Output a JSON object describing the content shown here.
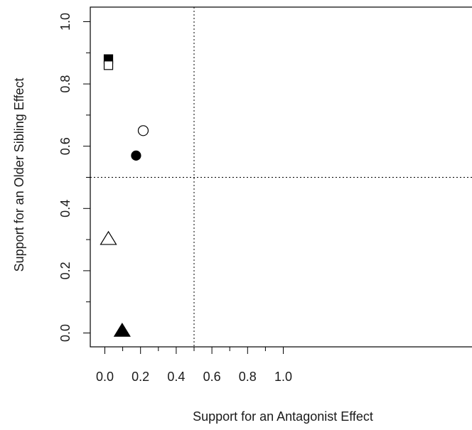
{
  "chart_data": {
    "type": "scatter",
    "title": "",
    "xlabel": "Support for an Antagonist Effect",
    "ylabel": "Support for an Older Sibling Effect",
    "xlim": [
      -0.04,
      1.04
    ],
    "ylim": [
      -0.04,
      1.04
    ],
    "x_ticks": [
      0.0,
      0.2,
      0.4,
      0.6,
      0.8,
      1.0
    ],
    "x_tick_labels": [
      "0.0",
      "0.2",
      "0.4",
      "0.6",
      "0.8",
      "1.0"
    ],
    "y_ticks": [
      0.0,
      0.2,
      0.4,
      0.6,
      0.8,
      1.0
    ],
    "y_tick_labels": [
      "0.0",
      "0.2",
      "0.4",
      "0.6",
      "0.8",
      "1.0"
    ],
    "reference_lines": {
      "x": 0.5,
      "y": 0.5,
      "style": "dotted"
    },
    "grid": false,
    "legend": "none",
    "points": [
      {
        "x": 0.02,
        "y": 0.88,
        "marker": "square",
        "filled": true
      },
      {
        "x": 0.02,
        "y": 0.86,
        "marker": "square",
        "filled": false
      },
      {
        "x": 0.215,
        "y": 0.65,
        "marker": "circle",
        "filled": false
      },
      {
        "x": 0.175,
        "y": 0.57,
        "marker": "circle",
        "filled": true
      },
      {
        "x": 0.02,
        "y": 0.3,
        "marker": "triangle",
        "filled": false
      },
      {
        "x": 0.097,
        "y": 0.005,
        "marker": "triangle",
        "filled": true
      }
    ],
    "colors": {
      "ink": "#000000",
      "background": "#ffffff"
    }
  }
}
